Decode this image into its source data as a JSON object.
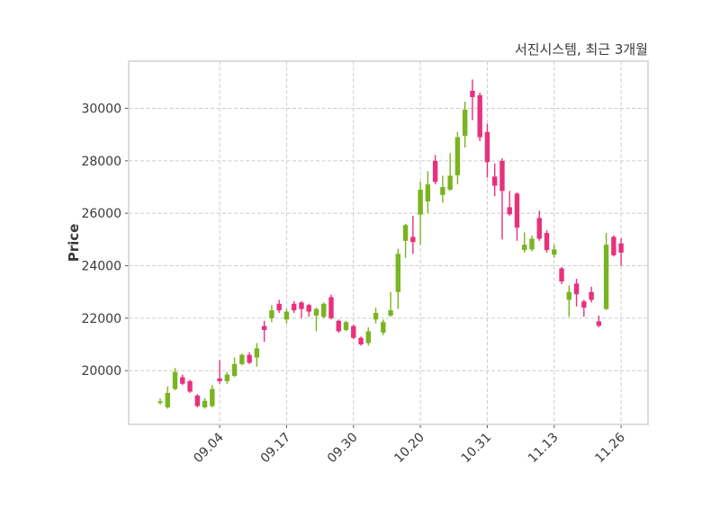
{
  "header": {
    "title": "서진시스템, 최근 3개월"
  },
  "chart": {
    "ylabel": "Price",
    "colors": {
      "up": "#7ab420",
      "down": "#e8317d",
      "grid": "#cccccc",
      "border": "#d9d9d9",
      "tick": "#555555",
      "text": "#3a3a3a",
      "background": "#ffffff"
    }
  },
  "chart_data": {
    "type": "candlestick",
    "title": "서진시스템, 최근 3개월",
    "xlabel": "",
    "ylabel": "Price",
    "grid": "dashed",
    "legend": "none",
    "y_ticks": [
      20000,
      22000,
      24000,
      26000,
      28000,
      30000
    ],
    "ylim": [
      17950,
      31800
    ],
    "x_tick_labels": [
      "09.04",
      "09.17",
      "09.30",
      "10.20",
      "10.31",
      "11.13",
      "11.26"
    ],
    "x_tick_indices": [
      8,
      17,
      26,
      35,
      44,
      53,
      62
    ],
    "candles_ohlc": [
      [
        18780,
        18940,
        18700,
        18830
      ],
      [
        18600,
        19400,
        18550,
        19150
      ],
      [
        19300,
        20100,
        19250,
        19950
      ],
      [
        19750,
        19850,
        19450,
        19500
      ],
      [
        19600,
        19650,
        19150,
        19200
      ],
      [
        19050,
        19100,
        18600,
        18650
      ],
      [
        18600,
        18950,
        18550,
        18850
      ],
      [
        18650,
        19450,
        18600,
        19300
      ],
      [
        19700,
        20400,
        19500,
        19600
      ],
      [
        19600,
        19950,
        19500,
        19850
      ],
      [
        19800,
        20500,
        19750,
        20250
      ],
      [
        20250,
        20650,
        20200,
        20600
      ],
      [
        20600,
        20700,
        20250,
        20300
      ],
      [
        20500,
        21050,
        20150,
        20850
      ],
      [
        21700,
        21900,
        21100,
        21550
      ],
      [
        22000,
        22500,
        21850,
        22300
      ],
      [
        22550,
        22700,
        22200,
        22300
      ],
      [
        21950,
        22350,
        21800,
        22250
      ],
      [
        22550,
        22650,
        22200,
        22300
      ],
      [
        22600,
        22650,
        22000,
        22350
      ],
      [
        22500,
        22550,
        22050,
        22250
      ],
      [
        22100,
        22400,
        21500,
        22350
      ],
      [
        22050,
        22600,
        22000,
        22550
      ],
      [
        22800,
        22900,
        21950,
        22000
      ],
      [
        21900,
        21950,
        21450,
        21500
      ],
      [
        21550,
        21900,
        21500,
        21850
      ],
      [
        21700,
        21750,
        21200,
        21250
      ],
      [
        21250,
        21300,
        20950,
        21000
      ],
      [
        21050,
        21650,
        20950,
        21500
      ],
      [
        21950,
        22400,
        21800,
        22200
      ],
      [
        21450,
        21950,
        21350,
        21850
      ],
      [
        22100,
        23000,
        22050,
        22300
      ],
      [
        23000,
        24650,
        22350,
        24450
      ],
      [
        24950,
        25600,
        24300,
        25550
      ],
      [
        25100,
        25900,
        24450,
        24900
      ],
      [
        25950,
        27200,
        24800,
        26900
      ],
      [
        26450,
        27600,
        26000,
        27100
      ],
      [
        28000,
        28220,
        27100,
        27200
      ],
      [
        26700,
        27430,
        26400,
        27000
      ],
      [
        26900,
        28290,
        26850,
        27430
      ],
      [
        27450,
        29100,
        27100,
        28900
      ],
      [
        28950,
        30260,
        28500,
        29950
      ],
      [
        30670,
        31100,
        29550,
        30430
      ],
      [
        30500,
        30600,
        28750,
        28900
      ],
      [
        29100,
        29420,
        27360,
        27950
      ],
      [
        27400,
        27900,
        26650,
        27050
      ],
      [
        28000,
        28100,
        25000,
        26850
      ],
      [
        26230,
        26850,
        25900,
        25960
      ],
      [
        26750,
        26800,
        24950,
        25450
      ],
      [
        24600,
        25270,
        24500,
        24800
      ],
      [
        24620,
        25150,
        24550,
        25030
      ],
      [
        25820,
        26100,
        24950,
        25030
      ],
      [
        25250,
        25350,
        24500,
        24600
      ],
      [
        24420,
        24800,
        24300,
        24620
      ],
      [
        23900,
        23950,
        23300,
        23400
      ],
      [
        22700,
        23250,
        22050,
        23000
      ],
      [
        23320,
        23500,
        22450,
        22910
      ],
      [
        22640,
        22700,
        22050,
        22400
      ],
      [
        23000,
        23200,
        22600,
        22700
      ],
      [
        21880,
        22100,
        21650,
        21710
      ],
      [
        22350,
        25250,
        22300,
        24800
      ],
      [
        25100,
        25150,
        24350,
        24400
      ],
      [
        24850,
        25050,
        24000,
        24500
      ]
    ]
  }
}
